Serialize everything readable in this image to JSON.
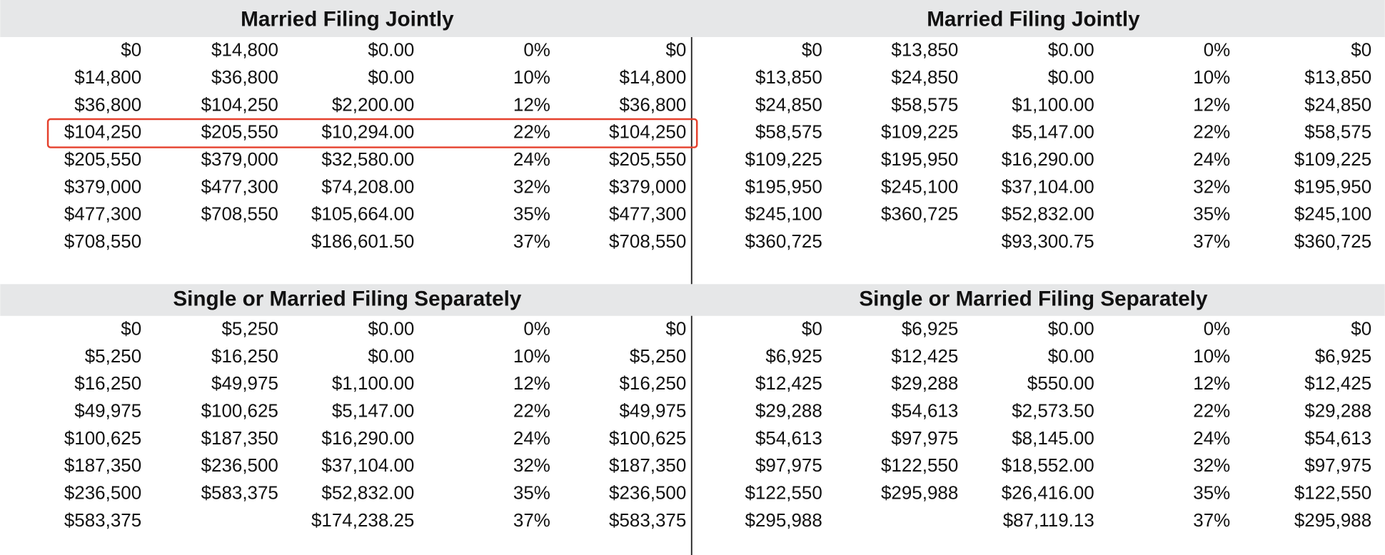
{
  "panels": [
    {
      "title": "Married Filing Jointly",
      "rows": [
        [
          "$0",
          "$14,800",
          "$0.00",
          "0%",
          "$0"
        ],
        [
          "$14,800",
          "$36,800",
          "$0.00",
          "10%",
          "$14,800"
        ],
        [
          "$36,800",
          "$104,250",
          "$2,200.00",
          "12%",
          "$36,800"
        ],
        [
          "$104,250",
          "$205,550",
          "$10,294.00",
          "22%",
          "$104,250"
        ],
        [
          "$205,550",
          "$379,000",
          "$32,580.00",
          "24%",
          "$205,550"
        ],
        [
          "$379,000",
          "$477,300",
          "$74,208.00",
          "32%",
          "$379,000"
        ],
        [
          "$477,300",
          "$708,550",
          "$105,664.00",
          "35%",
          "$477,300"
        ],
        [
          "$708,550",
          null,
          "$186,601.50",
          "37%",
          "$708,550"
        ]
      ]
    },
    {
      "title": "Married Filing Jointly",
      "rows": [
        [
          "$0",
          "$13,850",
          "$0.00",
          "0%",
          "$0"
        ],
        [
          "$13,850",
          "$24,850",
          "$0.00",
          "10%",
          "$13,850"
        ],
        [
          "$24,850",
          "$58,575",
          "$1,100.00",
          "12%",
          "$24,850"
        ],
        [
          "$58,575",
          "$109,225",
          "$5,147.00",
          "22%",
          "$58,575"
        ],
        [
          "$109,225",
          "$195,950",
          "$16,290.00",
          "24%",
          "$109,225"
        ],
        [
          "$195,950",
          "$245,100",
          "$37,104.00",
          "32%",
          "$195,950"
        ],
        [
          "$245,100",
          "$360,725",
          "$52,832.00",
          "35%",
          "$245,100"
        ],
        [
          "$360,725",
          null,
          "$93,300.75",
          "37%",
          "$360,725"
        ]
      ]
    },
    {
      "title": "Single or Married Filing Separately",
      "rows": [
        [
          "$0",
          "$5,250",
          "$0.00",
          "0%",
          "$0"
        ],
        [
          "$5,250",
          "$16,250",
          "$0.00",
          "10%",
          "$5,250"
        ],
        [
          "$16,250",
          "$49,975",
          "$1,100.00",
          "12%",
          "$16,250"
        ],
        [
          "$49,975",
          "$100,625",
          "$5,147.00",
          "22%",
          "$49,975"
        ],
        [
          "$100,625",
          "$187,350",
          "$16,290.00",
          "24%",
          "$100,625"
        ],
        [
          "$187,350",
          "$236,500",
          "$37,104.00",
          "32%",
          "$187,350"
        ],
        [
          "$236,500",
          "$583,375",
          "$52,832.00",
          "35%",
          "$236,500"
        ],
        [
          "$583,375",
          null,
          "$174,238.25",
          "37%",
          "$583,375"
        ]
      ]
    },
    {
      "title": "Single or Married Filing Separately",
      "rows": [
        [
          "$0",
          "$6,925",
          "$0.00",
          "0%",
          "$0"
        ],
        [
          "$6,925",
          "$12,425",
          "$0.00",
          "10%",
          "$6,925"
        ],
        [
          "$12,425",
          "$29,288",
          "$550.00",
          "12%",
          "$12,425"
        ],
        [
          "$29,288",
          "$54,613",
          "$2,573.50",
          "22%",
          "$29,288"
        ],
        [
          "$54,613",
          "$97,975",
          "$8,145.00",
          "24%",
          "$54,613"
        ],
        [
          "$97,975",
          "$122,550",
          "$18,552.00",
          "32%",
          "$97,975"
        ],
        [
          "$122,550",
          "$295,988",
          "$26,416.00",
          "35%",
          "$122,550"
        ],
        [
          "$295,988",
          null,
          "$87,119.13",
          "37%",
          "$295,988"
        ]
      ]
    }
  ]
}
